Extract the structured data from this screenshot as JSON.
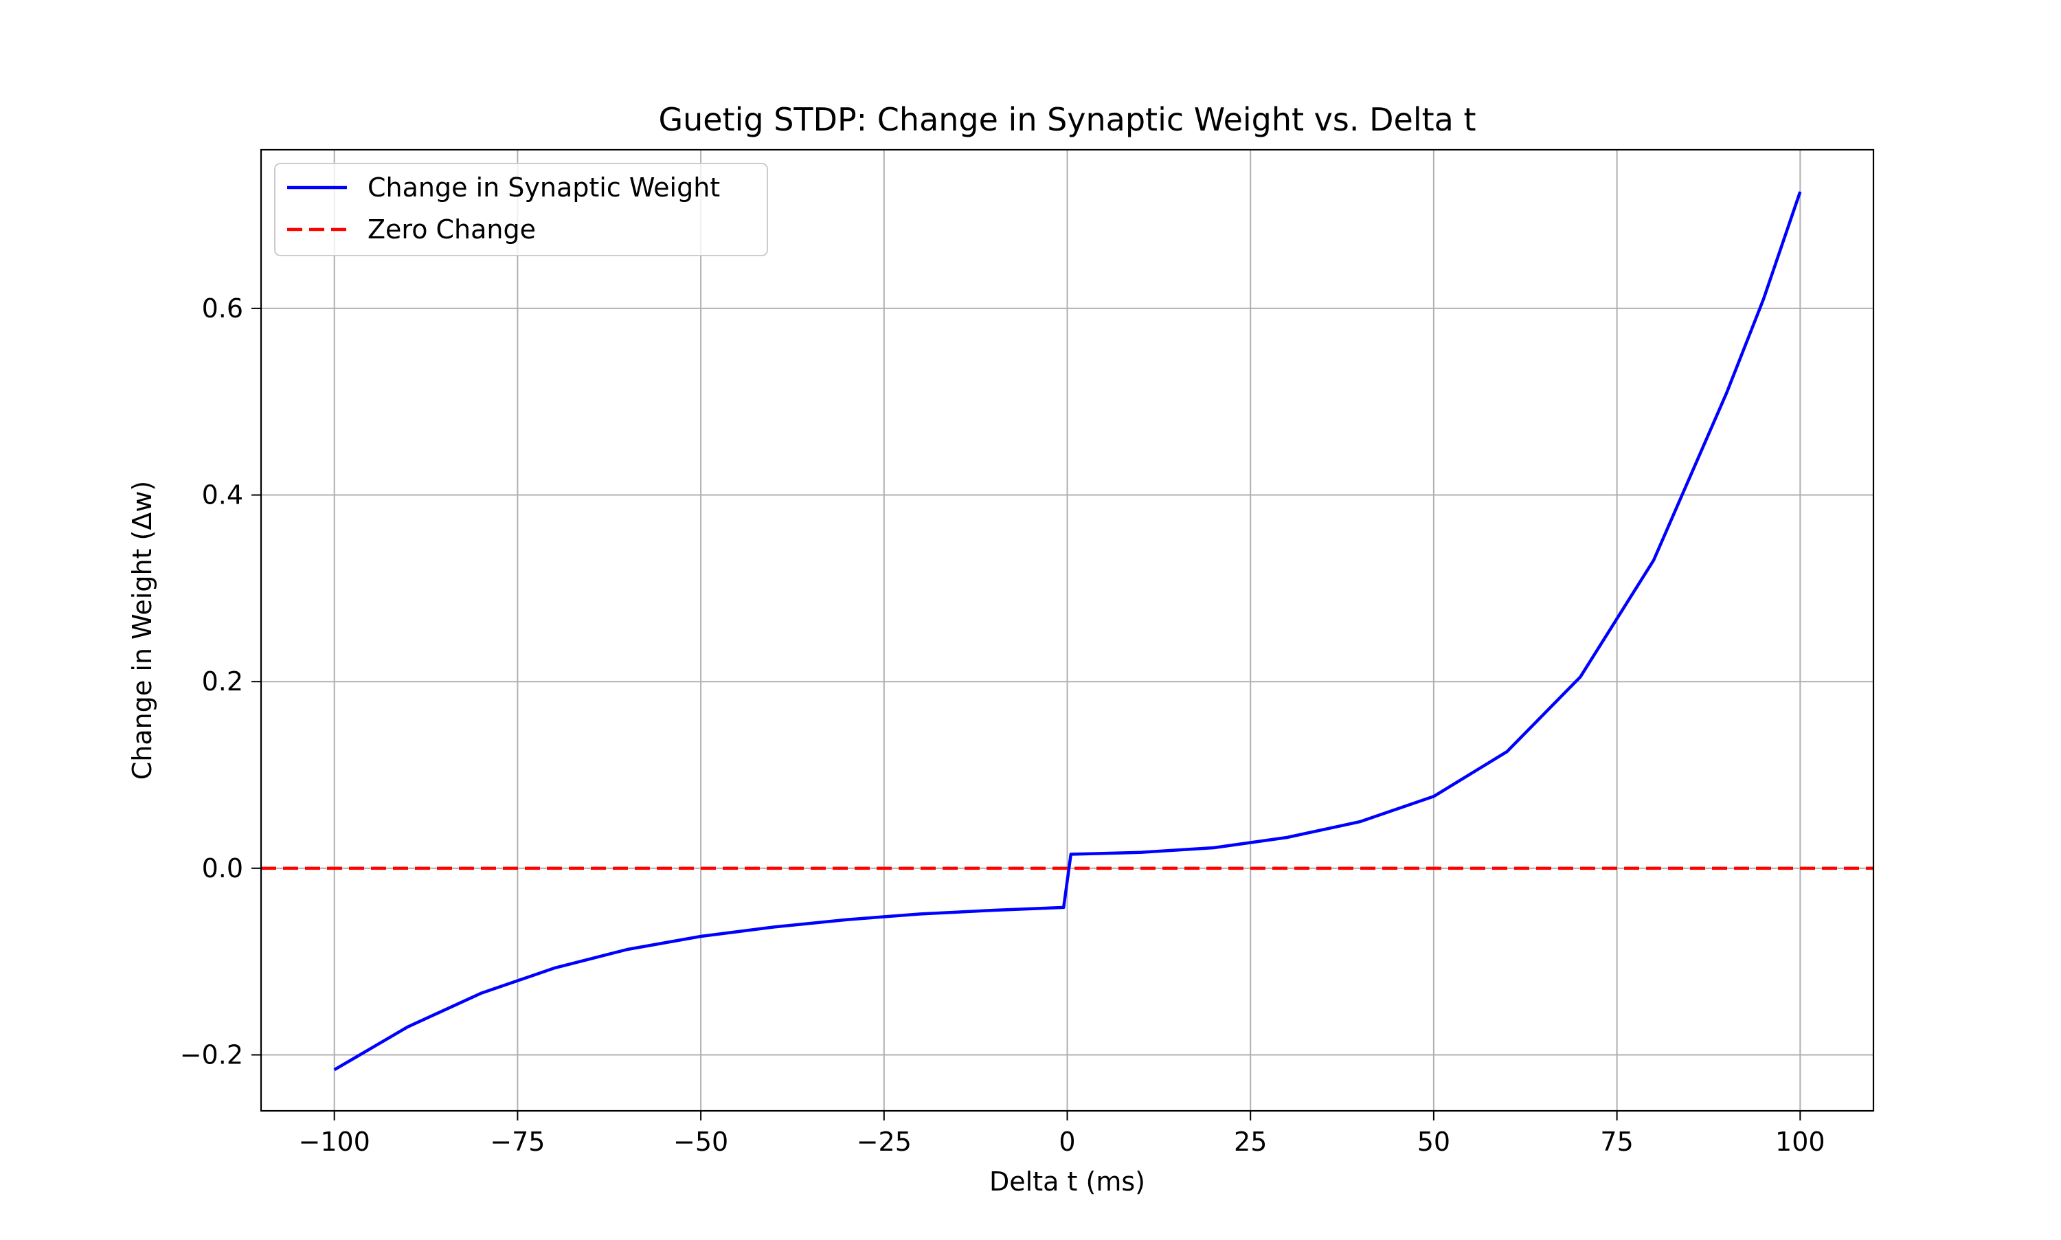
{
  "chart_data": {
    "type": "line",
    "title": "Guetig STDP: Change in Synaptic Weight vs. Delta t",
    "xlabel": "Delta t (ms)",
    "ylabel": "Change in Weight (Δw)",
    "xlim": [
      -110,
      110
    ],
    "ylim": [
      -0.26,
      0.77
    ],
    "xticks": [
      -100,
      -75,
      -50,
      -25,
      0,
      25,
      50,
      75,
      100
    ],
    "xtick_labels": [
      "−100",
      "−75",
      "−50",
      "−25",
      "0",
      "25",
      "50",
      "75",
      "100"
    ],
    "yticks": [
      -0.2,
      0.0,
      0.2,
      0.4,
      0.6
    ],
    "ytick_labels": [
      "−0.2",
      "0.0",
      "0.2",
      "0.4",
      "0.6"
    ],
    "grid": true,
    "legend_position": "top-left",
    "series": [
      {
        "name": "Change in Synaptic Weight",
        "color": "#0000ff",
        "style": "solid",
        "x": [
          -100,
          -90,
          -80,
          -70,
          -60,
          -50,
          -40,
          -30,
          -20,
          -10,
          -0.5,
          0.5,
          10,
          20,
          30,
          40,
          50,
          60,
          70,
          80,
          90,
          95,
          100
        ],
        "y": [
          -0.216,
          -0.17,
          -0.134,
          -0.107,
          -0.087,
          -0.073,
          -0.063,
          -0.055,
          -0.049,
          -0.045,
          -0.042,
          0.015,
          0.017,
          0.022,
          0.033,
          0.05,
          0.077,
          0.125,
          0.205,
          0.33,
          0.51,
          0.61,
          0.725
        ]
      },
      {
        "name": "Zero Change",
        "color": "#ff0000",
        "style": "dashed",
        "x": [
          -110,
          110
        ],
        "y": [
          0,
          0
        ]
      }
    ]
  }
}
